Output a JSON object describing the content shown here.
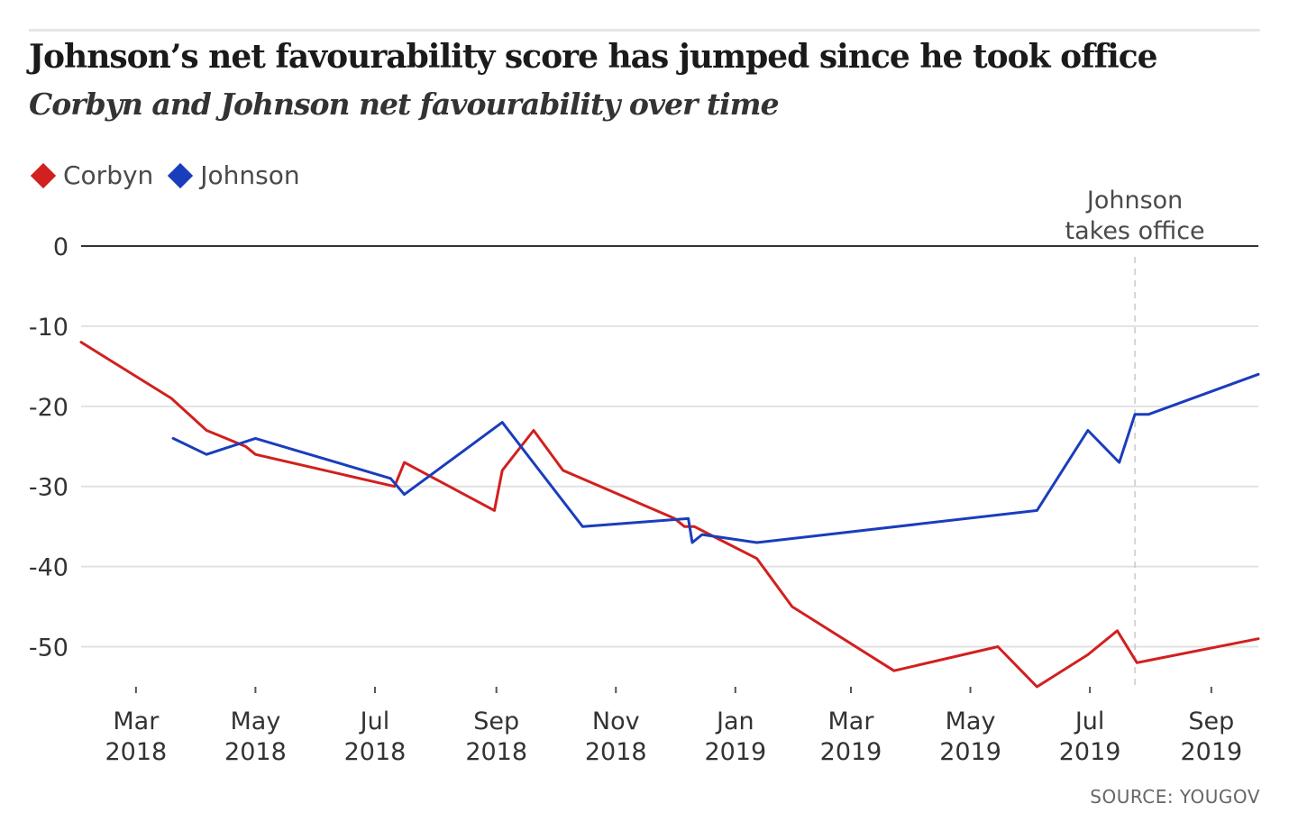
{
  "chart_data": {
    "type": "line",
    "title": "Johnson’s net favourability score has jumped since he took office",
    "subtitle": "Corbyn and Johnson net favourability over time",
    "xlabel": "",
    "ylabel": "",
    "ylim": [
      -55,
      0
    ],
    "xlim": [
      "2018-02-01",
      "2019-09-25"
    ],
    "yticks": [
      0,
      -10,
      -20,
      -30,
      -40,
      -50
    ],
    "yticklabels": [
      "0",
      "-10",
      "-20",
      "-30",
      "-40",
      "-50"
    ],
    "xticks": [
      "2018-03-01",
      "2018-05-01",
      "2018-07-01",
      "2018-09-01",
      "2018-11-01",
      "2019-01-01",
      "2019-03-01",
      "2019-05-01",
      "2019-07-01",
      "2019-09-01"
    ],
    "xticklabels": [
      [
        "Mar",
        "2018"
      ],
      [
        "May",
        "2018"
      ],
      [
        "Jul",
        "2018"
      ],
      [
        "Sep",
        "2018"
      ],
      [
        "Nov",
        "2018"
      ],
      [
        "Jan",
        "2019"
      ],
      [
        "Mar",
        "2019"
      ],
      [
        "May",
        "2019"
      ],
      [
        "Jul",
        "2019"
      ],
      [
        "Sep",
        "2019"
      ]
    ],
    "grid": true,
    "legend_position": "top-left",
    "series": [
      {
        "name": "Corbyn",
        "color": "#d1201f",
        "points": [
          [
            "2018-02-01",
            -12
          ],
          [
            "2018-03-19",
            -19
          ],
          [
            "2018-04-06",
            -23
          ],
          [
            "2018-04-26",
            -25
          ],
          [
            "2018-05-01",
            -26
          ],
          [
            "2018-07-11",
            -30
          ],
          [
            "2018-07-16",
            -27
          ],
          [
            "2018-08-31",
            -33
          ],
          [
            "2018-09-04",
            -28
          ],
          [
            "2018-09-20",
            -23
          ],
          [
            "2018-10-05",
            -28
          ],
          [
            "2018-12-01",
            -34
          ],
          [
            "2018-12-06",
            -35
          ],
          [
            "2018-12-11",
            -35
          ],
          [
            "2018-12-27",
            -37
          ],
          [
            "2019-01-12",
            -39
          ],
          [
            "2019-01-30",
            -45
          ],
          [
            "2019-03-23",
            -53
          ],
          [
            "2019-05-15",
            -50
          ],
          [
            "2019-06-04",
            -55
          ],
          [
            "2019-06-30",
            -51
          ],
          [
            "2019-07-15",
            -48
          ],
          [
            "2019-07-25",
            -52
          ],
          [
            "2019-09-25",
            -49
          ]
        ]
      },
      {
        "name": "Johnson",
        "color": "#1a3dbc",
        "points": [
          [
            "2018-03-20",
            -24
          ],
          [
            "2018-04-06",
            -26
          ],
          [
            "2018-05-01",
            -24
          ],
          [
            "2018-07-09",
            -29
          ],
          [
            "2018-07-16",
            -31
          ],
          [
            "2018-09-04",
            -22
          ],
          [
            "2018-10-15",
            -35
          ],
          [
            "2018-12-08",
            -34
          ],
          [
            "2018-12-10",
            -37
          ],
          [
            "2018-12-15",
            -36
          ],
          [
            "2019-01-12",
            -37
          ],
          [
            "2019-06-04",
            -33
          ],
          [
            "2019-06-30",
            -23
          ],
          [
            "2019-07-16",
            -27
          ],
          [
            "2019-07-24",
            -21
          ],
          [
            "2019-07-31",
            -21
          ],
          [
            "2019-09-25",
            -16
          ]
        ]
      }
    ],
    "annotations": [
      {
        "date": "2019-07-24",
        "lines": [
          "Johnson",
          "takes office"
        ]
      }
    ]
  },
  "source": "SOURCE: YOUGOV"
}
